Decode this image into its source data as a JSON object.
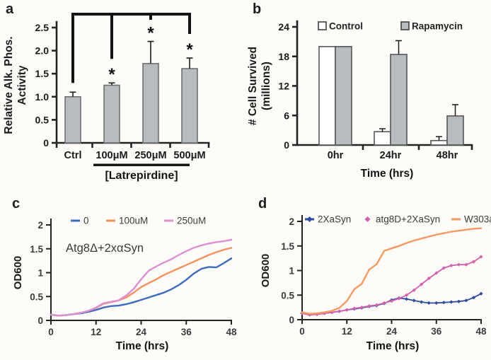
{
  "page": {
    "background": "#fdfcf9",
    "text_color": "#1c1c1c"
  },
  "chart_data": [
    {
      "panel_label": "a",
      "type": "bar",
      "ylabel_lines": [
        "Relative Alk. Phos.",
        "Activity"
      ],
      "xlabel": "[Latrepirdine]",
      "categories": [
        "Ctrl",
        "100μM",
        "250μM",
        "500μM"
      ],
      "values": [
        1.0,
        1.25,
        1.72,
        1.61
      ],
      "errors_up": [
        0.1,
        0.05,
        0.48,
        0.23
      ],
      "significance": [
        "",
        "*",
        "*",
        "*"
      ],
      "comparison_bracket": {
        "from": "Ctrl",
        "to": [
          "100μM",
          "250μM",
          "500μM"
        ]
      },
      "underline_categories": [
        "100μM",
        "250μM",
        "500μM"
      ],
      "ylim": [
        0,
        2.5
      ],
      "yticks": [
        "0",
        "0.5",
        "1.0",
        "1.5",
        "2.0",
        "2.5"
      ],
      "grid": "off",
      "bar_fill": "#b9bcbe",
      "bar_edge": "#6e7174"
    },
    {
      "panel_label": "b",
      "type": "bar",
      "grouped": true,
      "ylabel_lines": [
        "# Cell Survived",
        "(millions)"
      ],
      "xlabel": "Time (hrs)",
      "categories": [
        "0hr",
        "24hr",
        "48hr"
      ],
      "series": [
        {
          "name": "Control",
          "fill": "#ffffff",
          "values": [
            20,
            2.7,
            0.9
          ],
          "errors_up": [
            0,
            0.6,
            0.8
          ]
        },
        {
          "name": "Rapamycin",
          "fill": "#b9bcbe",
          "values": [
            20,
            18.4,
            5.9
          ],
          "errors_up": [
            0,
            2.8,
            2.3
          ]
        }
      ],
      "ylim": [
        0,
        24
      ],
      "yticks": [
        "0",
        "6",
        "12",
        "18",
        "24"
      ],
      "grid": "off",
      "legend_position": "top",
      "bar_edge": "#55585b"
    },
    {
      "panel_label": "c",
      "type": "line",
      "ylabel": "OD600",
      "xlabel": "Time (hrs)",
      "annotation": "Atg8Δ+2xαSyn",
      "xlim": [
        0,
        48
      ],
      "xticks": [
        "0",
        "12",
        "24",
        "36",
        "48"
      ],
      "ylim": [
        0,
        2
      ],
      "yticks": [
        "0",
        "0.5",
        "1",
        "1.5",
        "2"
      ],
      "grid": "off",
      "legend_position": "top",
      "x": [
        0,
        2,
        4,
        6,
        8,
        10,
        12,
        14,
        16,
        18,
        20,
        22,
        24,
        26,
        28,
        30,
        32,
        34,
        36,
        38,
        40,
        42,
        44,
        46,
        48
      ],
      "series": [
        {
          "name": "0",
          "color": "#3e6bbe",
          "marker": "line",
          "values": [
            0.12,
            0.1,
            0.11,
            0.13,
            0.15,
            0.18,
            0.22,
            0.27,
            0.3,
            0.31,
            0.34,
            0.38,
            0.43,
            0.48,
            0.53,
            0.58,
            0.65,
            0.74,
            0.85,
            0.98,
            1.08,
            1.12,
            1.11,
            1.2,
            1.3
          ]
        },
        {
          "name": "100uM",
          "color": "#f4915e",
          "marker": "line",
          "values": [
            0.12,
            0.1,
            0.11,
            0.13,
            0.16,
            0.2,
            0.26,
            0.35,
            0.38,
            0.42,
            0.48,
            0.58,
            0.7,
            0.78,
            0.86,
            0.95,
            1.02,
            1.09,
            1.16,
            1.23,
            1.3,
            1.37,
            1.43,
            1.48,
            1.52
          ]
        },
        {
          "name": "250uM",
          "color": "#dd8fd3",
          "marker": "line",
          "values": [
            0.12,
            0.1,
            0.11,
            0.13,
            0.16,
            0.2,
            0.27,
            0.36,
            0.39,
            0.42,
            0.52,
            0.66,
            0.86,
            1.04,
            1.13,
            1.21,
            1.28,
            1.37,
            1.45,
            1.52,
            1.57,
            1.61,
            1.64,
            1.66,
            1.69
          ]
        }
      ]
    },
    {
      "panel_label": "d",
      "type": "line",
      "ylabel": "OD600",
      "xlabel": "Time (hrs)",
      "annotation": "",
      "xlim": [
        0,
        48
      ],
      "xticks": [
        "0",
        "12",
        "24",
        "36",
        "48"
      ],
      "ylim": [
        0,
        2
      ],
      "yticks": [
        "0",
        "0.5",
        "1",
        "1.5",
        "2"
      ],
      "grid": "off",
      "legend_position": "top",
      "x": [
        0,
        2,
        4,
        6,
        8,
        10,
        12,
        14,
        16,
        18,
        20,
        22,
        24,
        26,
        28,
        30,
        32,
        34,
        36,
        38,
        40,
        42,
        44,
        46,
        48
      ],
      "series": [
        {
          "name": "2XaSyn",
          "color": "#2c4b9d",
          "marker": "line-diamond",
          "values": [
            0.13,
            0.1,
            0.11,
            0.13,
            0.15,
            0.17,
            0.2,
            0.22,
            0.24,
            0.27,
            0.29,
            0.33,
            0.4,
            0.44,
            0.42,
            0.39,
            0.36,
            0.34,
            0.34,
            0.35,
            0.36,
            0.37,
            0.39,
            0.45,
            0.53
          ]
        },
        {
          "name": "atg8D+2XaSyn",
          "color": "#d45fae",
          "marker": "diamond",
          "values": [
            0.13,
            0.1,
            0.11,
            0.13,
            0.15,
            0.17,
            0.2,
            0.23,
            0.25,
            0.28,
            0.3,
            0.34,
            0.38,
            0.43,
            0.5,
            0.6,
            0.72,
            0.84,
            0.95,
            1.05,
            1.1,
            1.12,
            1.12,
            1.18,
            1.28
          ]
        },
        {
          "name": "W303a",
          "color": "#f49a62",
          "marker": "line",
          "values": [
            0.15,
            0.12,
            0.13,
            0.15,
            0.18,
            0.24,
            0.38,
            0.62,
            0.73,
            1.02,
            1.13,
            1.4,
            1.45,
            1.5,
            1.56,
            1.61,
            1.65,
            1.69,
            1.73,
            1.76,
            1.79,
            1.81,
            1.83,
            1.85,
            1.86
          ]
        }
      ]
    }
  ]
}
